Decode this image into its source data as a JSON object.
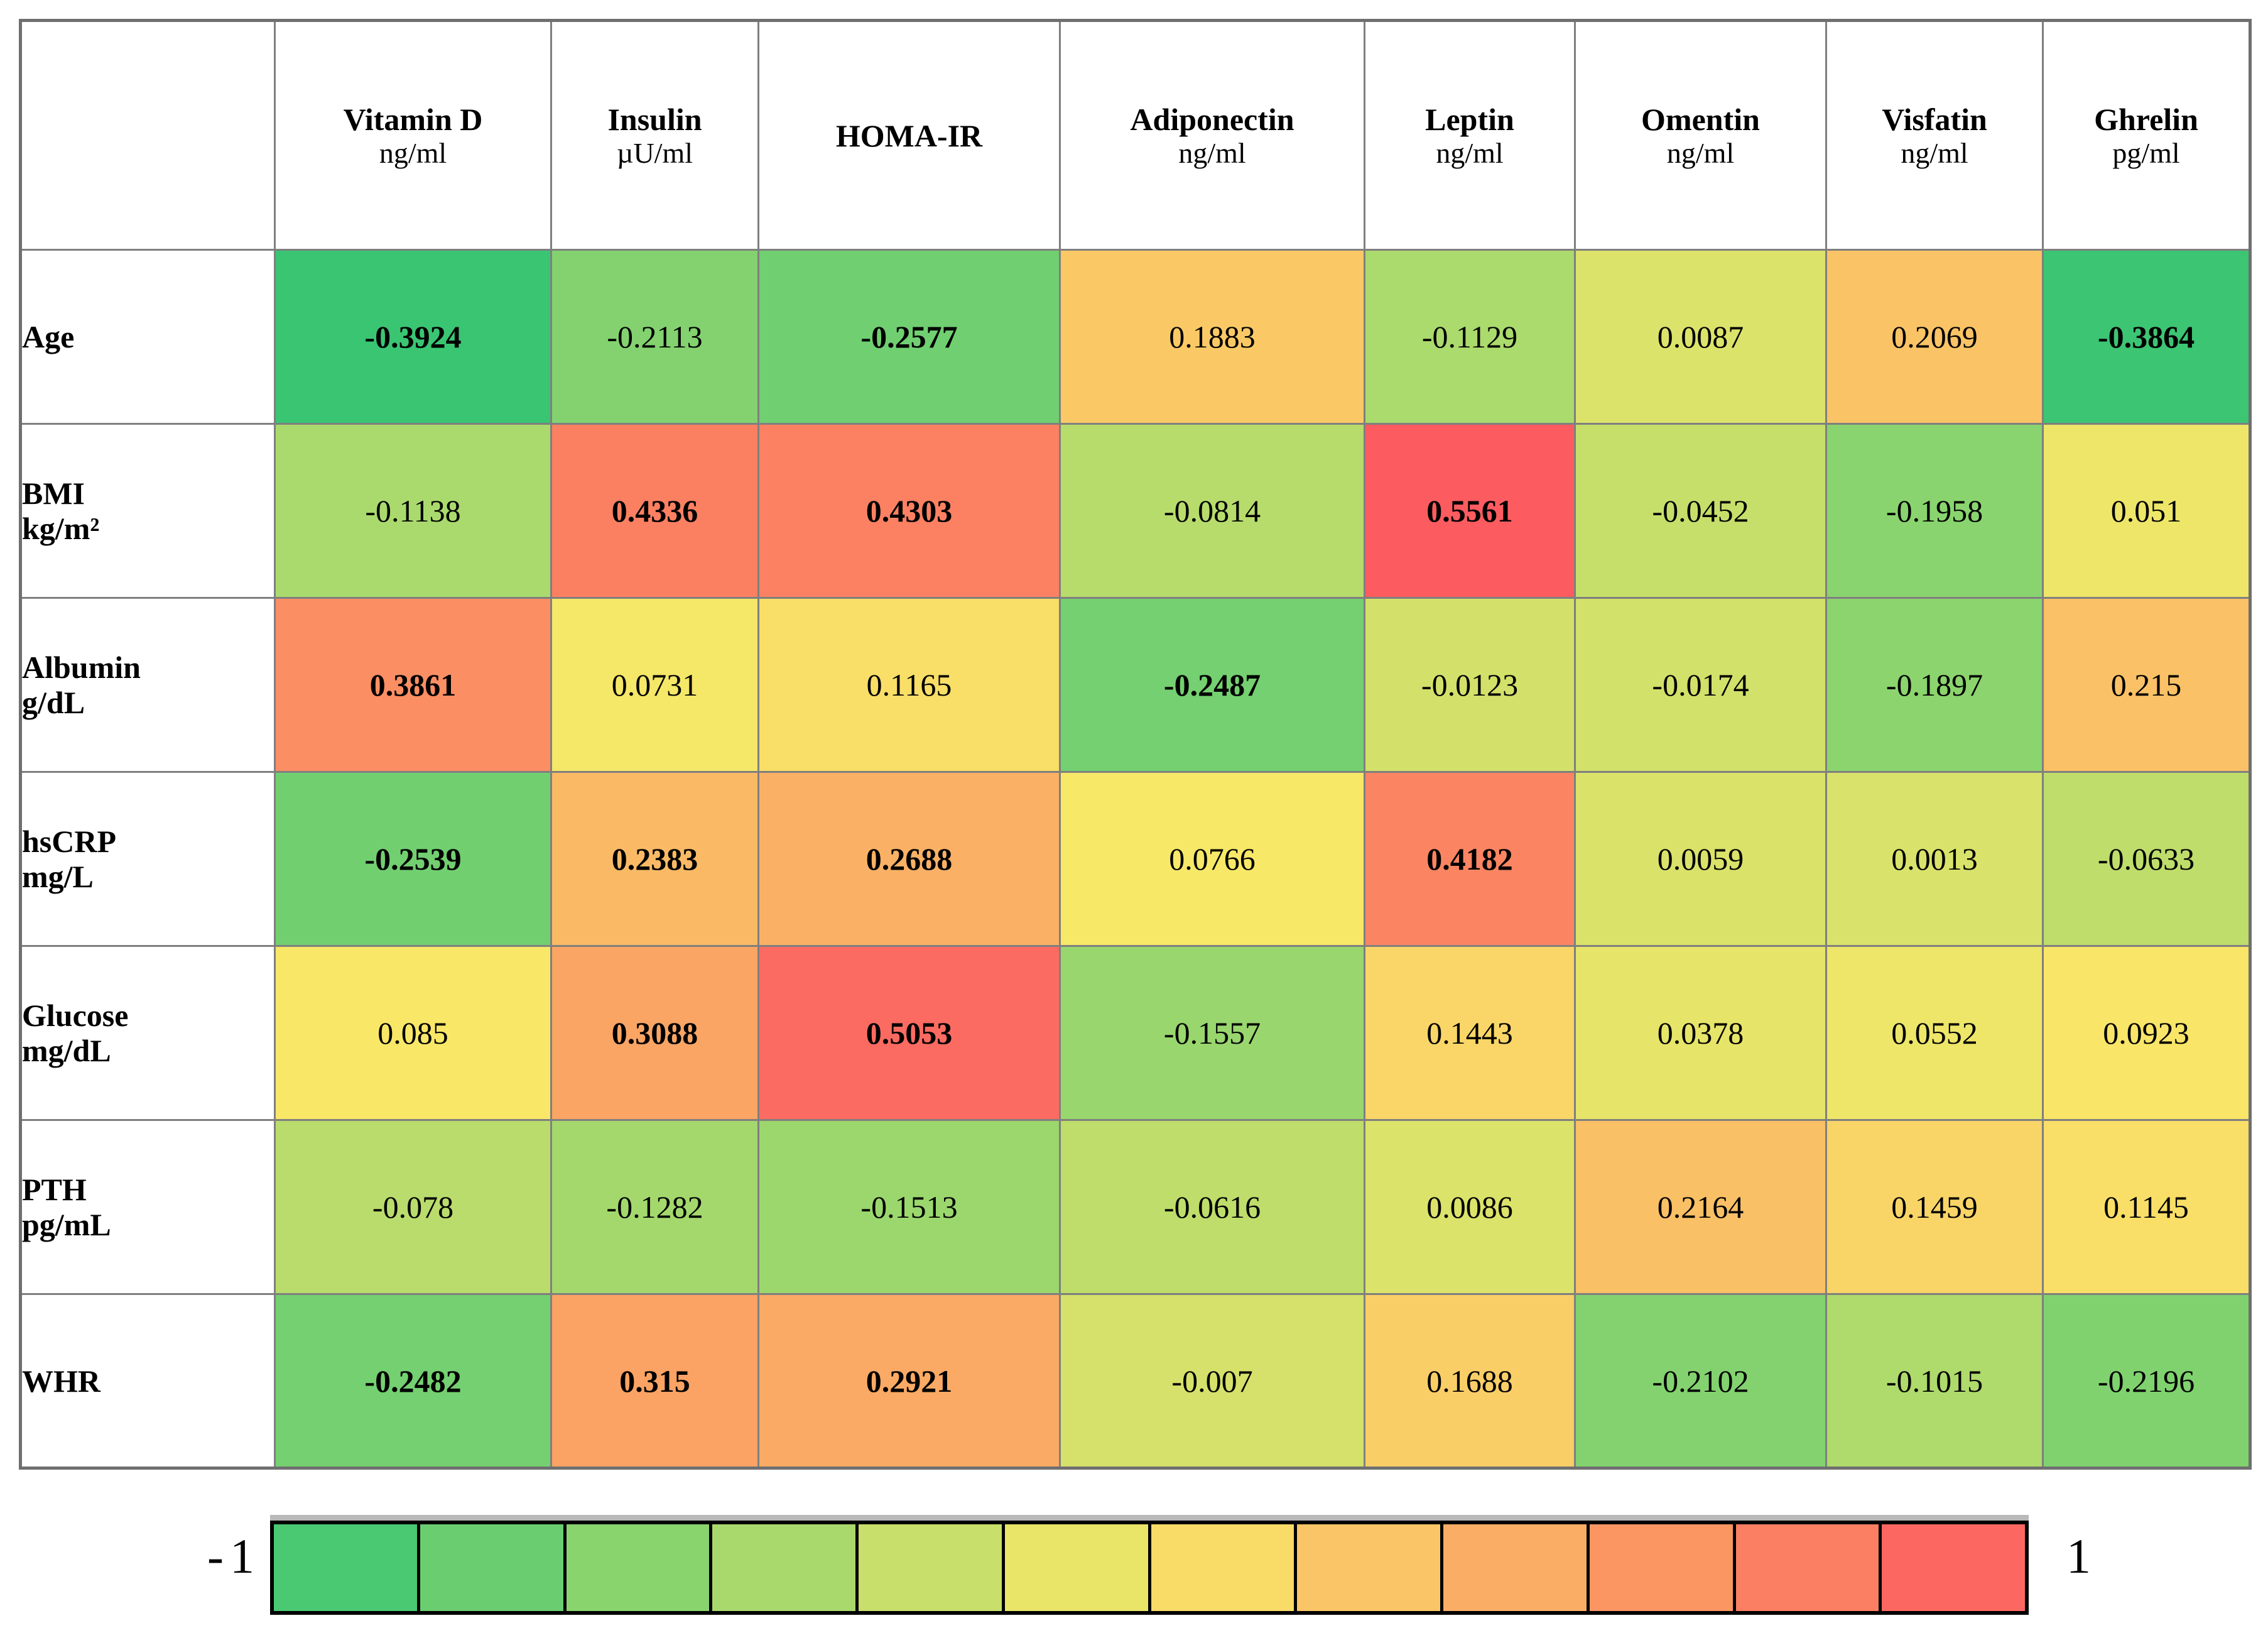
{
  "table": {
    "corner_label": "",
    "columns": [
      {
        "name": "Vitamin D",
        "unit": "ng/ml"
      },
      {
        "name": "Insulin",
        "unit": "µU/ml"
      },
      {
        "name": "HOMA-IR",
        "unit": ""
      },
      {
        "name": "Adiponectin",
        "unit": "ng/ml"
      },
      {
        "name": "Leptin",
        "unit": "ng/ml"
      },
      {
        "name": "Omentin",
        "unit": "ng/ml"
      },
      {
        "name": "Visfatin",
        "unit": "ng/ml"
      },
      {
        "name": "Ghrelin",
        "unit": "pg/ml"
      }
    ],
    "rows": [
      {
        "label": "Age",
        "unit": "",
        "cells": [
          {
            "v": "-0.3924",
            "bold": true
          },
          {
            "v": "-0.2113",
            "bold": false
          },
          {
            "v": "-0.2577",
            "bold": true
          },
          {
            "v": "0.1883",
            "bold": false
          },
          {
            "v": "-0.1129",
            "bold": false
          },
          {
            "v": "0.0087",
            "bold": false
          },
          {
            "v": "0.2069",
            "bold": false
          },
          {
            "v": "-0.3864",
            "bold": true
          }
        ]
      },
      {
        "label": "BMI",
        "unit": "kg/m²",
        "cells": [
          {
            "v": "-0.1138",
            "bold": false
          },
          {
            "v": "0.4336",
            "bold": true
          },
          {
            "v": "0.4303",
            "bold": true
          },
          {
            "v": "-0.0814",
            "bold": false
          },
          {
            "v": "0.5561",
            "bold": true
          },
          {
            "v": "-0.0452",
            "bold": false
          },
          {
            "v": "-0.1958",
            "bold": false
          },
          {
            "v": "0.051",
            "bold": false
          }
        ]
      },
      {
        "label": "Albumin",
        "unit": "g/dL",
        "cells": [
          {
            "v": "0.3861",
            "bold": true
          },
          {
            "v": "0.0731",
            "bold": false
          },
          {
            "v": "0.1165",
            "bold": false
          },
          {
            "v": "-0.2487",
            "bold": true
          },
          {
            "v": "-0.0123",
            "bold": false
          },
          {
            "v": "-0.0174",
            "bold": false
          },
          {
            "v": "-0.1897",
            "bold": false
          },
          {
            "v": "0.215",
            "bold": false
          }
        ]
      },
      {
        "label": "hsCRP",
        "unit": "mg/L",
        "cells": [
          {
            "v": "-0.2539",
            "bold": true
          },
          {
            "v": "0.2383",
            "bold": true
          },
          {
            "v": "0.2688",
            "bold": true
          },
          {
            "v": "0.0766",
            "bold": false
          },
          {
            "v": "0.4182",
            "bold": true
          },
          {
            "v": "0.0059",
            "bold": false
          },
          {
            "v": "0.0013",
            "bold": false
          },
          {
            "v": "-0.0633",
            "bold": false
          }
        ]
      },
      {
        "label": "Glucose",
        "unit": "mg/dL",
        "cells": [
          {
            "v": "0.085",
            "bold": false
          },
          {
            "v": "0.3088",
            "bold": true
          },
          {
            "v": "0.5053",
            "bold": true
          },
          {
            "v": "-0.1557",
            "bold": false
          },
          {
            "v": "0.1443",
            "bold": false
          },
          {
            "v": "0.0378",
            "bold": false
          },
          {
            "v": "0.0552",
            "bold": false
          },
          {
            "v": "0.0923",
            "bold": false
          }
        ]
      },
      {
        "label": "PTH",
        "unit": "pg/mL",
        "cells": [
          {
            "v": "-0.078",
            "bold": false
          },
          {
            "v": "-0.1282",
            "bold": false
          },
          {
            "v": "-0.1513",
            "bold": false
          },
          {
            "v": "-0.0616",
            "bold": false
          },
          {
            "v": "0.0086",
            "bold": false
          },
          {
            "v": "0.2164",
            "bold": false
          },
          {
            "v": "0.1459",
            "bold": false
          },
          {
            "v": "0.1145",
            "bold": false
          }
        ]
      },
      {
        "label": "WHR",
        "unit": "",
        "cells": [
          {
            "v": "-0.2482",
            "bold": true
          },
          {
            "v": "0.315",
            "bold": true
          },
          {
            "v": "0.2921",
            "bold": true
          },
          {
            "v": "-0.007",
            "bold": false
          },
          {
            "v": "0.1688",
            "bold": false
          },
          {
            "v": "-0.2102",
            "bold": false
          },
          {
            "v": "-0.1015",
            "bold": false
          },
          {
            "v": "-0.2196",
            "bold": false
          }
        ]
      }
    ]
  },
  "legend": {
    "min_label": "-1",
    "max_label": "1",
    "steps": 12
  },
  "colors": {
    "scale_green": "#3ac573",
    "scale_yellow": "#f9e868",
    "scale_red": "#fc5c60",
    "grid_border": "#7f7f7f",
    "legend_border": "#000000",
    "legend_top_shadow": "#b9b9b9"
  },
  "scale": {
    "min": -0.3924,
    "mid": 0.0819,
    "max": 0.5561
  },
  "chart_data": {
    "type": "heatmap",
    "title": "",
    "x_labels": [
      "Vitamin D ng/ml",
      "Insulin µU/ml",
      "HOMA-IR",
      "Adiponectin ng/ml",
      "Leptin ng/ml",
      "Omentin ng/ml",
      "Visfatin ng/ml",
      "Ghrelin pg/ml"
    ],
    "y_labels": [
      "Age",
      "BMI kg/m²",
      "Albumin g/dL",
      "hsCRP mg/L",
      "Glucose mg/dL",
      "PTH pg/mL",
      "WHR"
    ],
    "values": [
      [
        -0.3924,
        -0.2113,
        -0.2577,
        0.1883,
        -0.1129,
        0.0087,
        0.2069,
        -0.3864
      ],
      [
        -0.1138,
        0.4336,
        0.4303,
        -0.0814,
        0.5561,
        -0.0452,
        -0.1958,
        0.051
      ],
      [
        0.3861,
        0.0731,
        0.1165,
        -0.2487,
        -0.0123,
        -0.0174,
        -0.1897,
        0.215
      ],
      [
        -0.2539,
        0.2383,
        0.2688,
        0.0766,
        0.4182,
        0.0059,
        0.0013,
        -0.0633
      ],
      [
        0.085,
        0.3088,
        0.5053,
        -0.1557,
        0.1443,
        0.0378,
        0.0552,
        0.0923
      ],
      [
        -0.078,
        -0.1282,
        -0.1513,
        -0.0616,
        0.0086,
        0.2164,
        0.1459,
        0.1145
      ],
      [
        -0.2482,
        0.315,
        0.2921,
        -0.007,
        0.1688,
        -0.2102,
        -0.1015,
        -0.2196
      ]
    ],
    "bold_mask": [
      [
        1,
        0,
        1,
        0,
        0,
        0,
        0,
        1
      ],
      [
        0,
        1,
        1,
        0,
        1,
        0,
        0,
        0
      ],
      [
        1,
        0,
        0,
        1,
        0,
        0,
        0,
        0
      ],
      [
        1,
        1,
        1,
        0,
        1,
        0,
        0,
        0
      ],
      [
        0,
        1,
        1,
        0,
        0,
        0,
        0,
        0
      ],
      [
        0,
        0,
        0,
        0,
        0,
        0,
        0,
        0
      ],
      [
        1,
        1,
        1,
        0,
        0,
        0,
        0,
        0
      ]
    ],
    "colorbar": {
      "orientation": "horizontal",
      "range": [
        -1,
        1
      ],
      "discrete_steps": 12,
      "low_color": "green",
      "mid_color": "yellow",
      "high_color": "red"
    }
  }
}
